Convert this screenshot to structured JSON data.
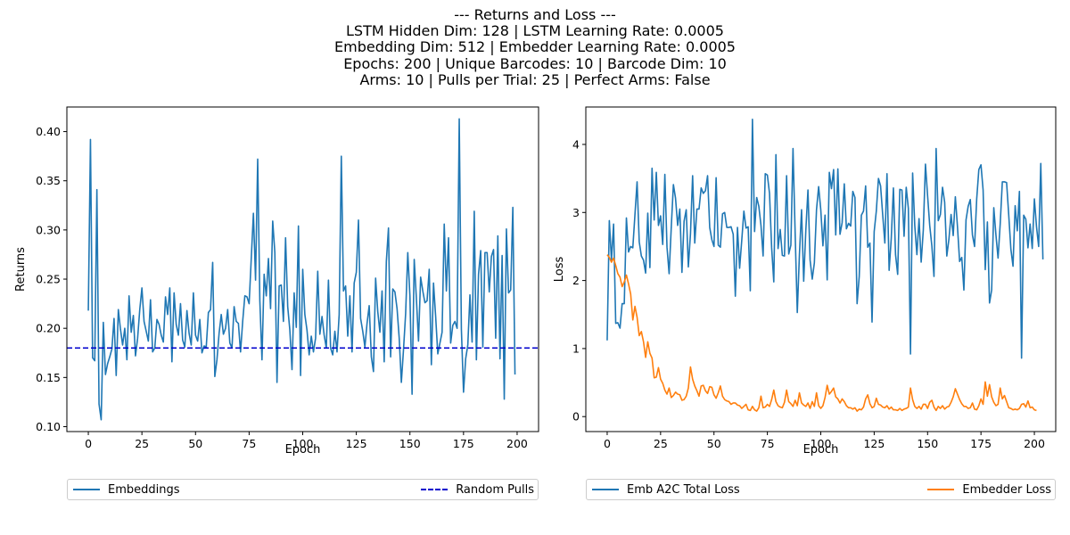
{
  "title_lines": [
    "--- Returns and Loss ---",
    "LSTM Hidden Dim: 128 | LSTM Learning Rate: 0.0005",
    "Embedding Dim: 512 | Embedder Learning Rate: 0.0005",
    "Epochs: 200 | Unique Barcodes: 10 | Barcode Dim: 10",
    "Arms: 10 | Pulls per Trial: 25 | Perfect Arms: False"
  ],
  "colors": {
    "blue": "#1f77b4",
    "orange": "#ff7f0e",
    "baseline": "#0000cd",
    "axis": "#000000"
  },
  "chart_data": [
    {
      "type": "line",
      "xlabel": "Epoch",
      "ylabel": "Returns",
      "xlim": [
        -10,
        210
      ],
      "ylim": [
        0.095,
        0.425
      ],
      "xticks": [
        0,
        25,
        50,
        75,
        100,
        125,
        150,
        175,
        200
      ],
      "yticks": [
        0.1,
        0.15,
        0.2,
        0.25,
        0.3,
        0.35,
        0.4
      ],
      "ytick_labels": [
        "0.10",
        "0.15",
        "0.20",
        "0.25",
        "0.30",
        "0.35",
        "0.40"
      ],
      "grid": false,
      "legend_position": "below",
      "series": [
        {
          "name": "Embeddings",
          "color": "#1f77b4",
          "style": "solid",
          "values": [
            0.218,
            0.392,
            0.17,
            0.167,
            0.341,
            0.123,
            0.107,
            0.206,
            0.153,
            0.164,
            0.171,
            0.179,
            0.21,
            0.152,
            0.219,
            0.199,
            0.183,
            0.2,
            0.168,
            0.233,
            0.196,
            0.213,
            0.172,
            0.19,
            0.219,
            0.241,
            0.207,
            0.197,
            0.187,
            0.229,
            0.176,
            0.18,
            0.209,
            0.204,
            0.193,
            0.186,
            0.232,
            0.214,
            0.241,
            0.166,
            0.236,
            0.204,
            0.193,
            0.225,
            0.188,
            0.181,
            0.218,
            0.195,
            0.183,
            0.236,
            0.193,
            0.187,
            0.209,
            0.175,
            0.182,
            0.181,
            0.216,
            0.219,
            0.267,
            0.151,
            0.168,
            0.195,
            0.214,
            0.194,
            0.2,
            0.219,
            0.185,
            0.18,
            0.222,
            0.207,
            0.205,
            0.176,
            0.207,
            0.233,
            0.232,
            0.225,
            0.271,
            0.317,
            0.249,
            0.372,
            0.228,
            0.168,
            0.255,
            0.233,
            0.271,
            0.22,
            0.309,
            0.277,
            0.145,
            0.243,
            0.244,
            0.207,
            0.292,
            0.222,
            0.198,
            0.158,
            0.236,
            0.201,
            0.304,
            0.152,
            0.26,
            0.214,
            0.198,
            0.173,
            0.192,
            0.176,
            0.19,
            0.258,
            0.194,
            0.212,
            0.193,
            0.18,
            0.249,
            0.18,
            0.173,
            0.197,
            0.176,
            0.214,
            0.375,
            0.238,
            0.243,
            0.192,
            0.233,
            0.176,
            0.246,
            0.257,
            0.31,
            0.21,
            0.197,
            0.181,
            0.205,
            0.223,
            0.171,
            0.156,
            0.251,
            0.217,
            0.196,
            0.238,
            0.166,
            0.268,
            0.302,
            0.171,
            0.24,
            0.237,
            0.22,
            0.19,
            0.145,
            0.178,
            0.215,
            0.277,
            0.233,
            0.133,
            0.27,
            0.231,
            0.187,
            0.252,
            0.238,
            0.226,
            0.228,
            0.26,
            0.163,
            0.246,
            0.212,
            0.174,
            0.185,
            0.196,
            0.306,
            0.238,
            0.292,
            0.185,
            0.203,
            0.207,
            0.2,
            0.413,
            0.199,
            0.135,
            0.169,
            0.183,
            0.234,
            0.186,
            0.319,
            0.168,
            0.255,
            0.279,
            0.181,
            0.277,
            0.277,
            0.237,
            0.273,
            0.28,
            0.19,
            0.294,
            0.169,
            0.274,
            0.128,
            0.301,
            0.236,
            0.239,
            0.323,
            0.153
          ]
        },
        {
          "name": "Random Pulls",
          "color": "#0000cd",
          "style": "dashed",
          "constant": 0.18
        }
      ]
    },
    {
      "type": "line",
      "xlabel": "Epoch",
      "ylabel": "Loss",
      "xlim": [
        -10,
        210
      ],
      "ylim": [
        -0.22,
        4.55
      ],
      "xticks": [
        0,
        25,
        50,
        75,
        100,
        125,
        150,
        175,
        200
      ],
      "yticks": [
        0,
        1,
        2,
        3,
        4
      ],
      "ytick_labels": [
        "0",
        "1",
        "2",
        "3",
        "4"
      ],
      "grid": false,
      "legend_position": "below",
      "series": [
        {
          "name": "Emb A2C Total Loss",
          "color": "#1f77b4",
          "style": "solid",
          "values": [
            1.12,
            2.88,
            2.3,
            2.83,
            1.37,
            1.38,
            1.3,
            1.66,
            1.66,
            2.92,
            2.42,
            2.5,
            2.48,
            2.97,
            3.45,
            2.57,
            2.36,
            2.3,
            2.11,
            2.99,
            2.19,
            3.65,
            2.89,
            3.59,
            2.81,
            2.95,
            2.53,
            3.56,
            2.49,
            2.1,
            2.78,
            3.41,
            3.21,
            2.81,
            3.05,
            2.12,
            2.87,
            3.04,
            2.2,
            2.69,
            3.54,
            2.55,
            3.05,
            3.05,
            3.36,
            3.28,
            3.32,
            3.54,
            2.78,
            2.6,
            2.5,
            3.51,
            2.52,
            2.49,
            2.98,
            3.0,
            2.78,
            2.78,
            2.79,
            2.68,
            1.77,
            2.78,
            2.18,
            2.59,
            3.02,
            2.77,
            2.79,
            1.85,
            4.37,
            2.72,
            3.22,
            3.09,
            2.81,
            2.36,
            3.57,
            3.55,
            3.28,
            2.48,
            1.98,
            3.85,
            2.47,
            2.75,
            2.37,
            2.36,
            3.54,
            2.39,
            2.52,
            3.94,
            2.7,
            1.53,
            2.38,
            3.04,
            1.99,
            2.74,
            3.33,
            2.3,
            2.02,
            2.26,
            3.04,
            3.38,
            3.04,
            2.51,
            2.96,
            2.01,
            3.59,
            3.35,
            3.63,
            2.67,
            3.64,
            2.68,
            2.85,
            3.42,
            2.76,
            2.84,
            2.8,
            3.31,
            3.22,
            1.66,
            2.06,
            2.96,
            3.02,
            3.39,
            2.49,
            2.55,
            1.39,
            2.72,
            3.02,
            3.5,
            3.39,
            2.96,
            2.55,
            3.57,
            2.15,
            2.62,
            3.36,
            2.38,
            2.09,
            3.34,
            3.33,
            2.65,
            3.37,
            3.06,
            0.92,
            3.58,
            2.81,
            2.38,
            2.91,
            2.27,
            2.74,
            3.71,
            3.25,
            2.81,
            2.51,
            2.06,
            3.94,
            2.88,
            2.97,
            3.37,
            3.15,
            2.36,
            2.61,
            2.97,
            2.66,
            3.23,
            2.79,
            2.28,
            2.34,
            1.86,
            2.89,
            3.09,
            3.19,
            2.67,
            2.5,
            3.2,
            3.63,
            3.7,
            3.33,
            2.16,
            2.86,
            1.67,
            1.86,
            3.07,
            2.67,
            2.33,
            2.83,
            3.45,
            3.45,
            3.44,
            2.96,
            2.46,
            2.21,
            3.1,
            2.73,
            3.31,
            0.86,
            2.96,
            2.9,
            2.48,
            2.83,
            2.47,
            3.2,
            2.79,
            2.5,
            3.72,
            2.31
          ]
        },
        {
          "name": "Embedder Loss",
          "color": "#ff7f0e",
          "style": "solid",
          "values": [
            2.38,
            2.34,
            2.27,
            2.33,
            2.22,
            2.1,
            2.05,
            1.91,
            1.98,
            2.08,
            1.95,
            1.8,
            1.42,
            1.62,
            1.46,
            1.19,
            1.25,
            1.1,
            0.87,
            1.1,
            0.93,
            0.86,
            0.57,
            0.58,
            0.72,
            0.55,
            0.49,
            0.39,
            0.33,
            0.42,
            0.28,
            0.31,
            0.36,
            0.33,
            0.32,
            0.24,
            0.25,
            0.3,
            0.42,
            0.73,
            0.55,
            0.45,
            0.38,
            0.3,
            0.45,
            0.46,
            0.38,
            0.34,
            0.44,
            0.43,
            0.32,
            0.27,
            0.35,
            0.45,
            0.3,
            0.25,
            0.23,
            0.22,
            0.18,
            0.2,
            0.2,
            0.17,
            0.16,
            0.12,
            0.15,
            0.18,
            0.1,
            0.09,
            0.15,
            0.1,
            0.08,
            0.13,
            0.3,
            0.13,
            0.14,
            0.18,
            0.15,
            0.25,
            0.39,
            0.22,
            0.16,
            0.14,
            0.13,
            0.21,
            0.39,
            0.22,
            0.19,
            0.15,
            0.24,
            0.16,
            0.35,
            0.2,
            0.17,
            0.15,
            0.2,
            0.12,
            0.22,
            0.15,
            0.35,
            0.16,
            0.12,
            0.16,
            0.28,
            0.46,
            0.33,
            0.37,
            0.42,
            0.29,
            0.26,
            0.2,
            0.26,
            0.22,
            0.16,
            0.13,
            0.13,
            0.11,
            0.13,
            0.08,
            0.11,
            0.1,
            0.14,
            0.26,
            0.32,
            0.19,
            0.13,
            0.15,
            0.27,
            0.18,
            0.17,
            0.14,
            0.13,
            0.16,
            0.11,
            0.14,
            0.1,
            0.1,
            0.09,
            0.12,
            0.09,
            0.11,
            0.12,
            0.14,
            0.42,
            0.25,
            0.15,
            0.12,
            0.15,
            0.11,
            0.18,
            0.18,
            0.12,
            0.21,
            0.24,
            0.14,
            0.09,
            0.15,
            0.12,
            0.16,
            0.11,
            0.14,
            0.15,
            0.21,
            0.29,
            0.41,
            0.33,
            0.25,
            0.19,
            0.15,
            0.15,
            0.12,
            0.13,
            0.2,
            0.11,
            0.1,
            0.16,
            0.26,
            0.18,
            0.51,
            0.3,
            0.47,
            0.29,
            0.21,
            0.16,
            0.18,
            0.42,
            0.26,
            0.31,
            0.22,
            0.13,
            0.12,
            0.1,
            0.11,
            0.1,
            0.12,
            0.18,
            0.19,
            0.14,
            0.23,
            0.13,
            0.14,
            0.1,
            0.09
          ]
        }
      ]
    }
  ]
}
